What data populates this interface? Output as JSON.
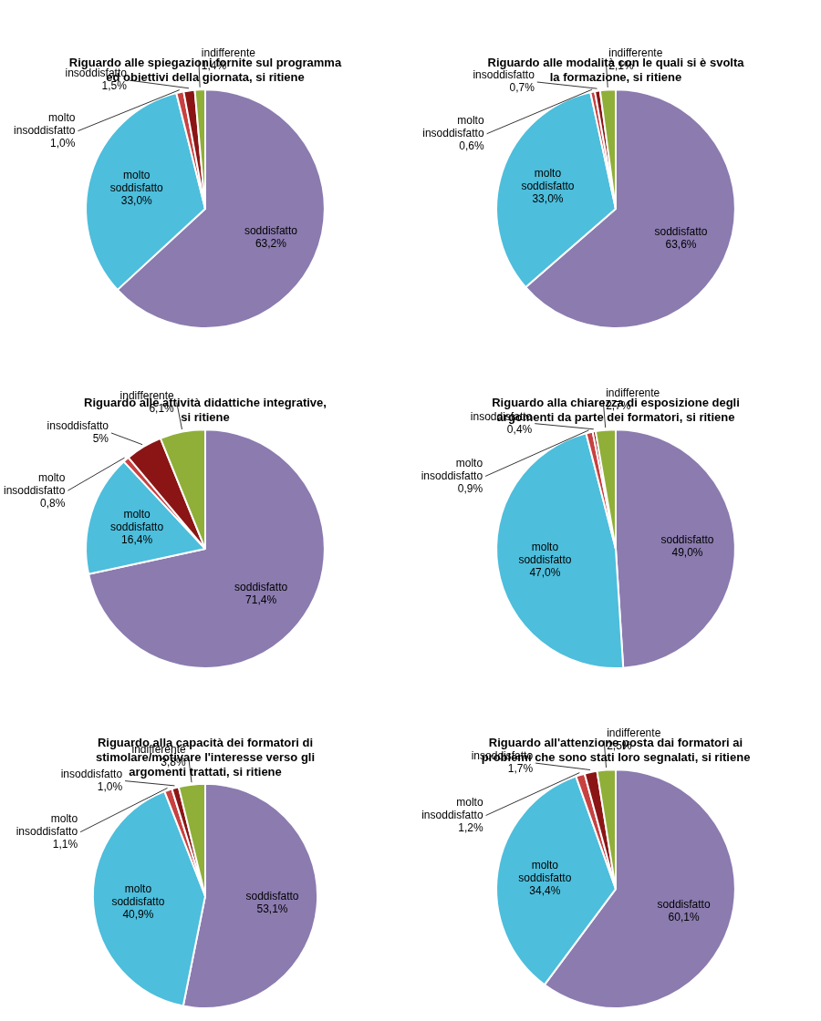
{
  "chart_data": [
    {
      "type": "pie",
      "title": "Riguardo alle spiegazioni fornite sul programma\ned obiettivi della giornata, si ritiene",
      "categories": [
        "soddisfatto",
        "molto\nsoddisfatto",
        "molto\ninsoddisfatto",
        "insoddisfatto",
        "indifferente"
      ],
      "values": [
        63.2,
        33.0,
        1.0,
        1.5,
        1.4
      ],
      "value_labels": [
        "63,2%",
        "33,0%",
        "1,0%",
        "1,5%",
        "1,4%"
      ],
      "colors": [
        "#8B7BAF",
        "#4DBEDC",
        "#C84040",
        "#8B1515",
        "#8FAF38"
      ],
      "data_labels": true
    },
    {
      "type": "pie",
      "title": "Riguardo alle modalità con le quali si è svolta\nla formazione, si ritiene",
      "categories": [
        "soddisfatto",
        "molto\nsoddisfatto",
        "molto\ninsoddisfatto",
        "insoddisfatto",
        "indifferente"
      ],
      "values": [
        63.6,
        33.0,
        0.6,
        0.7,
        2.1
      ],
      "value_labels": [
        "63,6%",
        "33,0%",
        "0,6%",
        "0,7%",
        "2,1%"
      ],
      "colors": [
        "#8B7BAF",
        "#4DBEDC",
        "#C84040",
        "#8B1515",
        "#8FAF38"
      ],
      "data_labels": true
    },
    {
      "type": "pie",
      "title": "Riguardo alle attività didattiche integrative,\nsi ritiene",
      "categories": [
        "soddisfatto",
        "molto\nsoddisfatto",
        "molto\ninsoddisfatto",
        "insoddisfatto",
        "indifferente"
      ],
      "values": [
        71.4,
        16.4,
        0.8,
        5.0,
        6.1
      ],
      "value_labels": [
        "71,4%",
        "16,4%",
        "0,8%",
        "5%",
        "6,1%"
      ],
      "colors": [
        "#8B7BAF",
        "#4DBEDC",
        "#C84040",
        "#8B1515",
        "#8FAF38"
      ],
      "data_labels": true
    },
    {
      "type": "pie",
      "title": "Riguardo alla chiarezza di esposizione degli\nargomenti da parte dei formatori, si ritiene",
      "categories": [
        "soddisfatto",
        "molto\nsoddisfatto",
        "molto\ninsoddisfatto",
        "insoddisfatto",
        "indifferente"
      ],
      "values": [
        49.0,
        47.0,
        0.9,
        0.4,
        2.7
      ],
      "value_labels": [
        "49,0%",
        "47,0%",
        "0,9%",
        "0,4%",
        "2,7%"
      ],
      "colors": [
        "#8B7BAF",
        "#4DBEDC",
        "#C84040",
        "#8B1515",
        "#8FAF38"
      ],
      "data_labels": true
    },
    {
      "type": "pie",
      "title": "Riguardo alla capacità dei formatori di\nstimolare/motivare l'interesse verso gli\nargomenti trattati, si ritiene",
      "categories": [
        "soddisfatto",
        "molto\nsoddisfatto",
        "molto\ninsoddisfatto",
        "insoddisfatto",
        "indifferente"
      ],
      "values": [
        53.1,
        40.9,
        1.1,
        1.0,
        3.8
      ],
      "value_labels": [
        "53,1%",
        "40,9%",
        "1,1%",
        "1,0%",
        "3,8%"
      ],
      "colors": [
        "#8B7BAF",
        "#4DBEDC",
        "#C84040",
        "#8B1515",
        "#8FAF38"
      ],
      "data_labels": true
    },
    {
      "type": "pie",
      "title": "Riguardo all'attenzione posta dai formatori ai\nproblemi che sono stati loro segnalati, si ritiene",
      "categories": [
        "soddisfatto",
        "molto\nsoddisfatto",
        "molto\ninsoddisfatto",
        "insoddisfatto",
        "indifferente"
      ],
      "values": [
        60.1,
        34.4,
        1.2,
        1.7,
        2.5
      ],
      "value_labels": [
        "60,1%",
        "34,4%",
        "1,2%",
        "1,7%",
        "2,5%"
      ],
      "colors": [
        "#8B7BAF",
        "#4DBEDC",
        "#C84040",
        "#8B1515",
        "#8FAF38"
      ],
      "data_labels": true
    }
  ]
}
